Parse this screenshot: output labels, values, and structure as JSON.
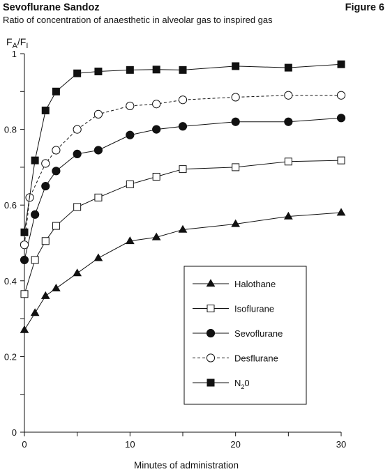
{
  "header": {
    "title": "Sevoflurane Sandoz",
    "figure_label": "Figure 6",
    "subtitle": "Ratio of concentration of anaesthetic in alveolar gas to inspired gas"
  },
  "chart_data": {
    "type": "line",
    "title": "Sevoflurane Sandoz",
    "subtitle": "Ratio of concentration of anaesthetic in alveolar gas to inspired gas",
    "xlabel": "Minutes of administration",
    "ylabel_main": "F",
    "ylabel_sub_a": "A",
    "ylabel_sep": "/F",
    "ylabel_sub_i": "I",
    "xlim": [
      0,
      30
    ],
    "ylim": [
      0,
      1
    ],
    "x_ticks": [
      0,
      10,
      20,
      30
    ],
    "x_tick_labels": [
      "0",
      "10",
      "20",
      "30"
    ],
    "x_minor_ticks": [
      5,
      15,
      25
    ],
    "y_ticks": [
      0,
      0.2,
      0.4,
      0.6,
      0.8,
      1
    ],
    "y_tick_labels": [
      "0",
      "0.2",
      "0.4",
      "0.6",
      "0.8",
      "1"
    ],
    "y_minor_ticks": [
      0.1,
      0.3,
      0.5,
      0.7,
      0.9
    ],
    "grid": false,
    "legend_position": "lower-right",
    "series": [
      {
        "name": "Halothane",
        "marker": "triangle-filled",
        "line": "solid",
        "color": "#111111",
        "x": [
          0,
          1,
          2,
          3,
          5,
          7,
          10,
          12.5,
          15,
          20,
          25,
          30
        ],
        "y": [
          0.27,
          0.315,
          0.36,
          0.38,
          0.42,
          0.46,
          0.505,
          0.515,
          0.535,
          0.55,
          0.57,
          0.58
        ]
      },
      {
        "name": "Isoflurane",
        "marker": "square-open",
        "line": "solid",
        "color": "#111111",
        "x": [
          0,
          1,
          2,
          3,
          5,
          7,
          10,
          12.5,
          15,
          20,
          25,
          30
        ],
        "y": [
          0.365,
          0.455,
          0.505,
          0.545,
          0.595,
          0.62,
          0.655,
          0.675,
          0.695,
          0.7,
          0.715,
          0.718
        ]
      },
      {
        "name": "Sevoflurane",
        "marker": "circle-filled",
        "line": "solid",
        "color": "#111111",
        "x": [
          0,
          1,
          2,
          3,
          5,
          7,
          10,
          12.5,
          15,
          20,
          25,
          30
        ],
        "y": [
          0.455,
          0.575,
          0.65,
          0.69,
          0.735,
          0.745,
          0.785,
          0.8,
          0.808,
          0.82,
          0.82,
          0.83
        ]
      },
      {
        "name": "Desflurane",
        "marker": "circle-open",
        "line": "dashed",
        "color": "#111111",
        "x": [
          0,
          0.5,
          2,
          3,
          5,
          7,
          10,
          12.5,
          15,
          20,
          25,
          30
        ],
        "y": [
          0.495,
          0.62,
          0.71,
          0.745,
          0.8,
          0.84,
          0.862,
          0.867,
          0.878,
          0.885,
          0.89,
          0.89
        ]
      },
      {
        "name": "N",
        "name_sub": "2",
        "name_suffix": "0",
        "marker": "square-filled",
        "line": "solid",
        "color": "#111111",
        "x": [
          0,
          1,
          2,
          3,
          5,
          7,
          10,
          12.5,
          15,
          20,
          25,
          30
        ],
        "y": [
          0.528,
          0.718,
          0.85,
          0.9,
          0.948,
          0.953,
          0.957,
          0.958,
          0.957,
          0.967,
          0.963,
          0.972
        ]
      }
    ]
  }
}
